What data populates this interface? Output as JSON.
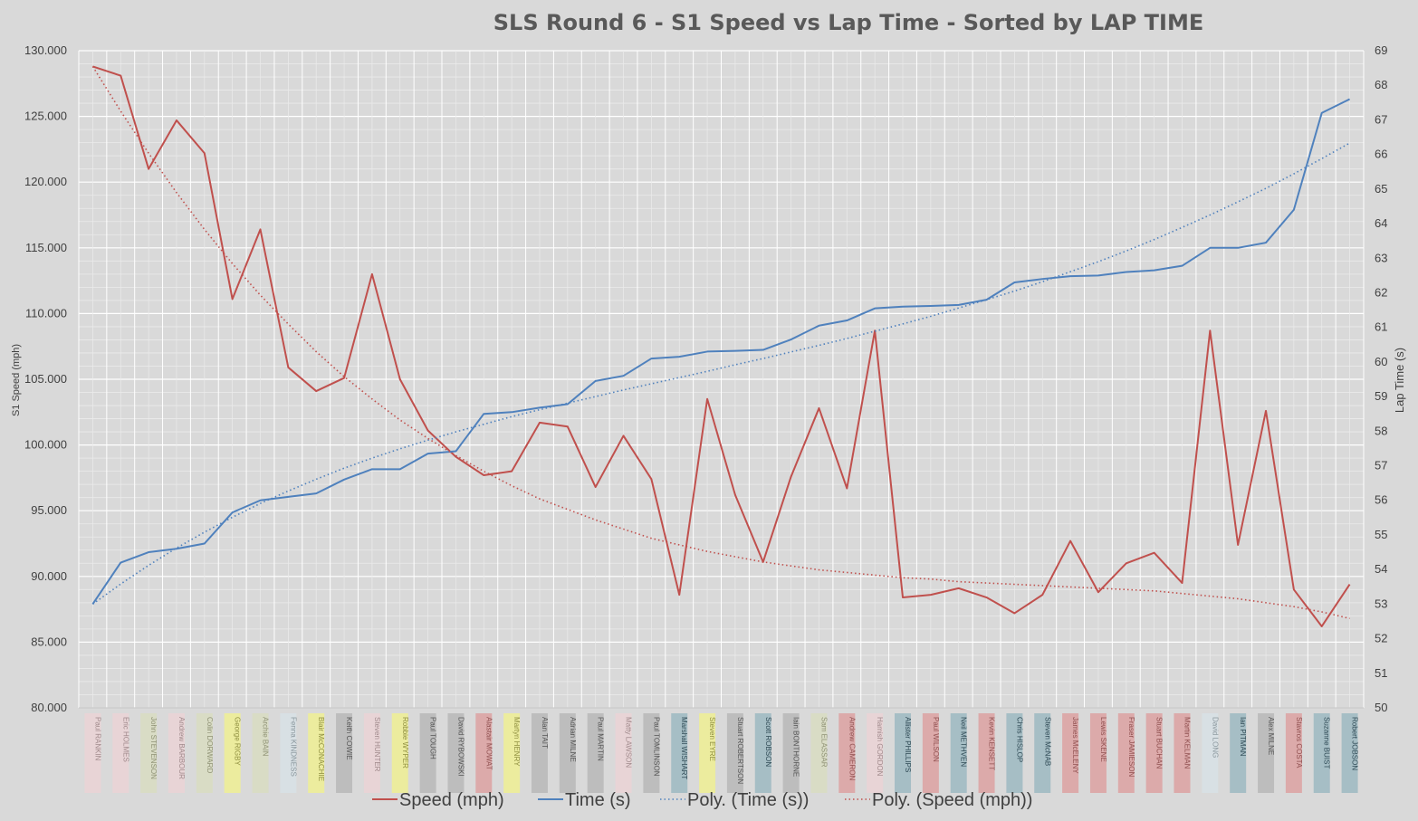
{
  "chart_data": {
    "type": "line",
    "title": "SLS Round 6 - S1 Speed vs Lap Time - Sorted by LAP TIME",
    "y_left_label": "S1 Speed (mph)",
    "y_right_label": "Lap Time (s)",
    "y_left_lim": [
      80,
      130
    ],
    "y_right_lim": [
      50,
      69
    ],
    "y_left_ticks": [
      "80.000",
      "85.000",
      "90.000",
      "95.000",
      "100.000",
      "105.000",
      "110.000",
      "115.000",
      "120.000",
      "125.000",
      "130.000"
    ],
    "y_right_ticks": [
      "50",
      "51",
      "52",
      "53",
      "54",
      "55",
      "56",
      "57",
      "58",
      "59",
      "60",
      "61",
      "62",
      "63",
      "64",
      "65",
      "66",
      "67",
      "68",
      "69"
    ],
    "grid": true,
    "legend_position": "bottom",
    "categories": [
      "Paul RANKIN",
      "Eric HOLMES",
      "John STEVENSON",
      "Andrew BARBOUR",
      "Colin DORWARD",
      "George RIGBY",
      "Archie BAIN",
      "Fenna KINDNESS",
      "Blair McCONACHIE",
      "Keith COWIE",
      "Steven HUNTER",
      "Robbie WYPER",
      "Paul TOUGH",
      "David RYBOWSKI",
      "Alastair MOWAT",
      "Martyn HENRY",
      "Alan TAIT",
      "Adrian MILNE",
      "Paul MARTIN",
      "Matty LAWSON",
      "Paul TOMLINSON",
      "Marshall WISHART",
      "Steven EYRE",
      "Stuart ROBERTSON",
      "Scott ROBSON",
      "Iain BONTHORNE",
      "Sam ELASSAR",
      "Andrew CAMERON",
      "Hamish GORDON",
      "Allister PHILLIPS",
      "Paul WILSON",
      "Neil METHVEN",
      "Kevin KENSETT",
      "Chris HISLOP",
      "Steven McNAB",
      "James McELENY",
      "Lewis SKENE",
      "Fraser JAMIESON",
      "Stuart BUCHAN",
      "Martin KELMAN",
      "David LONG",
      "Ian PITMAN",
      "Alex MILNE",
      "Stavros COSTA",
      "Suzanne BUIST",
      "Robert JOBSON"
    ],
    "category_colors": [
      "#e8d4d6",
      "#e8d4d6",
      "#d9dcc5",
      "#e8d4d6",
      "#d9dcc5",
      "#ecec9e",
      "#d9dcc5",
      "#d8e0e4",
      "#ecec9e",
      "#bdbdbd",
      "#e8d4d6",
      "#ecec9e",
      "#bdbdbd",
      "#bdbdbd",
      "#dcaaaa",
      "#ecec9e",
      "#bdbdbd",
      "#bdbdbd",
      "#bdbdbd",
      "#e8d4d6",
      "#bdbdbd",
      "#a6bec5",
      "#ecec9e",
      "#bdbdbd",
      "#a6bec5",
      "#bdbdbd",
      "#d9dcc5",
      "#dcaaaa",
      "#e8d4d6",
      "#a6bec5",
      "#dcaaaa",
      "#a6bec5",
      "#dcaaaa",
      "#a6bec5",
      "#a6bec5",
      "#dcaaaa",
      "#dcaaaa",
      "#dcaaaa",
      "#dcaaaa",
      "#dcaaaa",
      "#d8e0e4",
      "#a6bec5",
      "#bdbdbd",
      "#dcaaaa",
      "#a6bec5",
      "#a6bec5"
    ],
    "category_text_colors": [
      "#a08a8c",
      "#a08a8c",
      "#8f9275",
      "#a08a8c",
      "#8f9275",
      "#8f8f40",
      "#8f9275",
      "#8a969c",
      "#8f8f40",
      "#555555",
      "#a08a8c",
      "#8f8f40",
      "#555555",
      "#555555",
      "#905050",
      "#8f8f40",
      "#555555",
      "#555555",
      "#555555",
      "#a08a8c",
      "#555555",
      "#2f4a55",
      "#8f8f40",
      "#555555",
      "#2f4a55",
      "#555555",
      "#8f9275",
      "#905050",
      "#a08a8c",
      "#2f4a55",
      "#905050",
      "#2f4a55",
      "#905050",
      "#2f4a55",
      "#2f4a55",
      "#905050",
      "#905050",
      "#905050",
      "#905050",
      "#905050",
      "#8a969c",
      "#2f4a55",
      "#555555",
      "#905050",
      "#2f4a55",
      "#2f4a55"
    ],
    "series": [
      {
        "name": "Speed (mph)",
        "axis": "left",
        "color": "#c0504d",
        "style": "solid",
        "values": [
          128.8,
          128.1,
          121.0,
          124.7,
          122.2,
          111.1,
          116.4,
          105.9,
          104.1,
          105.1,
          113.0,
          105.0,
          101.1,
          99.1,
          97.7,
          98.0,
          101.7,
          101.4,
          96.8,
          100.7,
          97.4,
          88.6,
          103.5,
          96.2,
          91.1,
          97.6,
          102.8,
          96.7,
          108.7,
          88.4,
          88.6,
          89.1,
          88.4,
          87.2,
          88.6,
          92.7,
          88.8,
          91.0,
          91.8,
          89.5,
          108.7,
          92.4,
          102.6,
          89.0,
          86.2,
          89.4
        ]
      },
      {
        "name": "Time (s)",
        "axis": "right",
        "color": "#4f81bd",
        "style": "solid",
        "values": [
          53.0,
          54.2,
          54.5,
          54.6,
          54.75,
          55.65,
          56.0,
          56.1,
          56.2,
          56.6,
          56.9,
          56.9,
          57.35,
          57.42,
          58.5,
          58.55,
          58.68,
          58.78,
          59.45,
          59.6,
          60.1,
          60.15,
          60.3,
          60.32,
          60.35,
          60.65,
          61.05,
          61.2,
          61.55,
          61.6,
          61.62,
          61.65,
          61.8,
          62.3,
          62.4,
          62.48,
          62.5,
          62.6,
          62.65,
          62.78,
          63.3,
          63.3,
          63.45,
          64.4,
          67.2,
          67.6
        ]
      },
      {
        "name": "Poly. (Time (s))",
        "axis": "right",
        "color": "#4f81bd",
        "style": "dotted",
        "values": [
          53.0,
          53.58,
          54.12,
          54.62,
          55.08,
          55.51,
          55.91,
          56.27,
          56.61,
          56.93,
          57.22,
          57.49,
          57.74,
          57.98,
          58.2,
          58.42,
          58.62,
          58.81,
          59.0,
          59.19,
          59.37,
          59.55,
          59.73,
          59.92,
          60.1,
          60.29,
          60.48,
          60.68,
          60.89,
          61.1,
          61.32,
          61.56,
          61.8,
          62.05,
          62.32,
          62.61,
          62.9,
          63.21,
          63.54,
          63.89,
          64.25,
          64.63,
          65.02,
          65.44,
          65.88,
          66.33
        ]
      },
      {
        "name": "Poly. (Speed (mph))",
        "axis": "left",
        "color": "#c0504d",
        "style": "dotted",
        "values": [
          128.8,
          125.4,
          122.2,
          119.2,
          116.4,
          113.8,
          111.4,
          109.2,
          107.1,
          105.2,
          103.5,
          101.9,
          100.5,
          99.2,
          98.0,
          96.9,
          95.9,
          95.1,
          94.3,
          93.6,
          92.9,
          92.4,
          91.9,
          91.5,
          91.1,
          90.8,
          90.5,
          90.3,
          90.1,
          89.9,
          89.8,
          89.6,
          89.5,
          89.4,
          89.3,
          89.2,
          89.1,
          89.0,
          88.9,
          88.7,
          88.5,
          88.3,
          88.0,
          87.7,
          87.3,
          86.8
        ]
      }
    ]
  }
}
